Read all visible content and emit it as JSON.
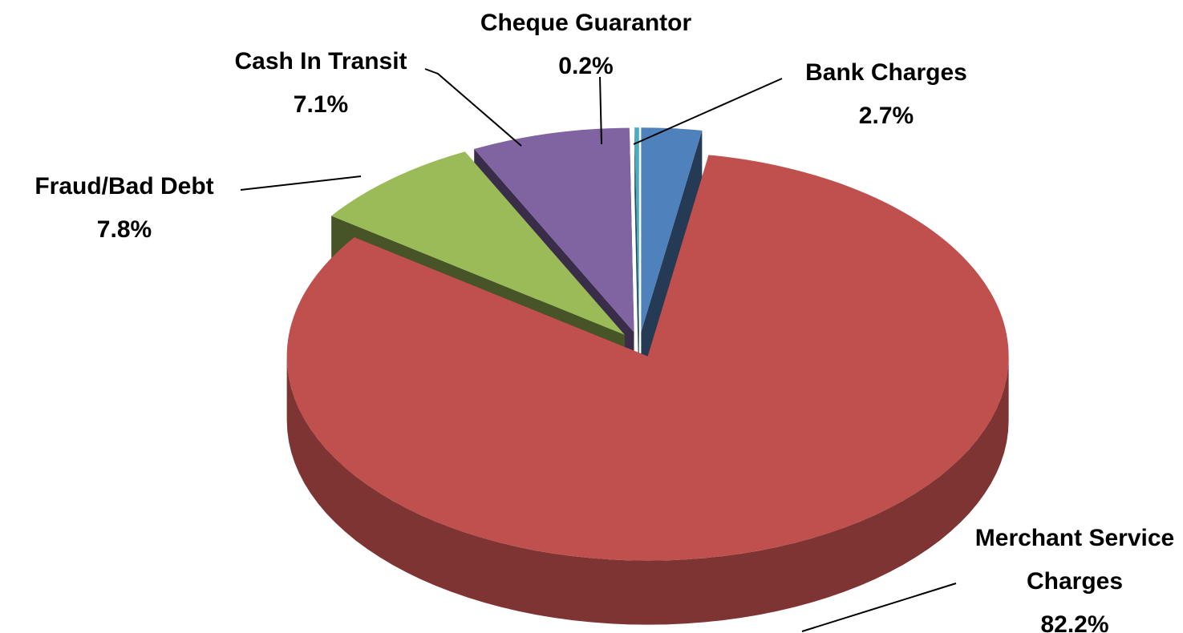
{
  "chart_data": {
    "type": "pie",
    "categories": [
      "Bank Charges",
      "Merchant Service Charges",
      "Fraud/Bad Debt",
      "Cash In Transit",
      "Cheque Guarantor"
    ],
    "values": [
      2.7,
      82.2,
      7.8,
      7.1,
      0.2
    ],
    "value_labels": [
      "2.7%",
      "82.2%",
      "7.8%",
      "7.1%",
      "0.2%"
    ],
    "colors": [
      "#4f81bd",
      "#c0504d",
      "#9bbb59",
      "#8064a2",
      "#4bacc6"
    ]
  }
}
